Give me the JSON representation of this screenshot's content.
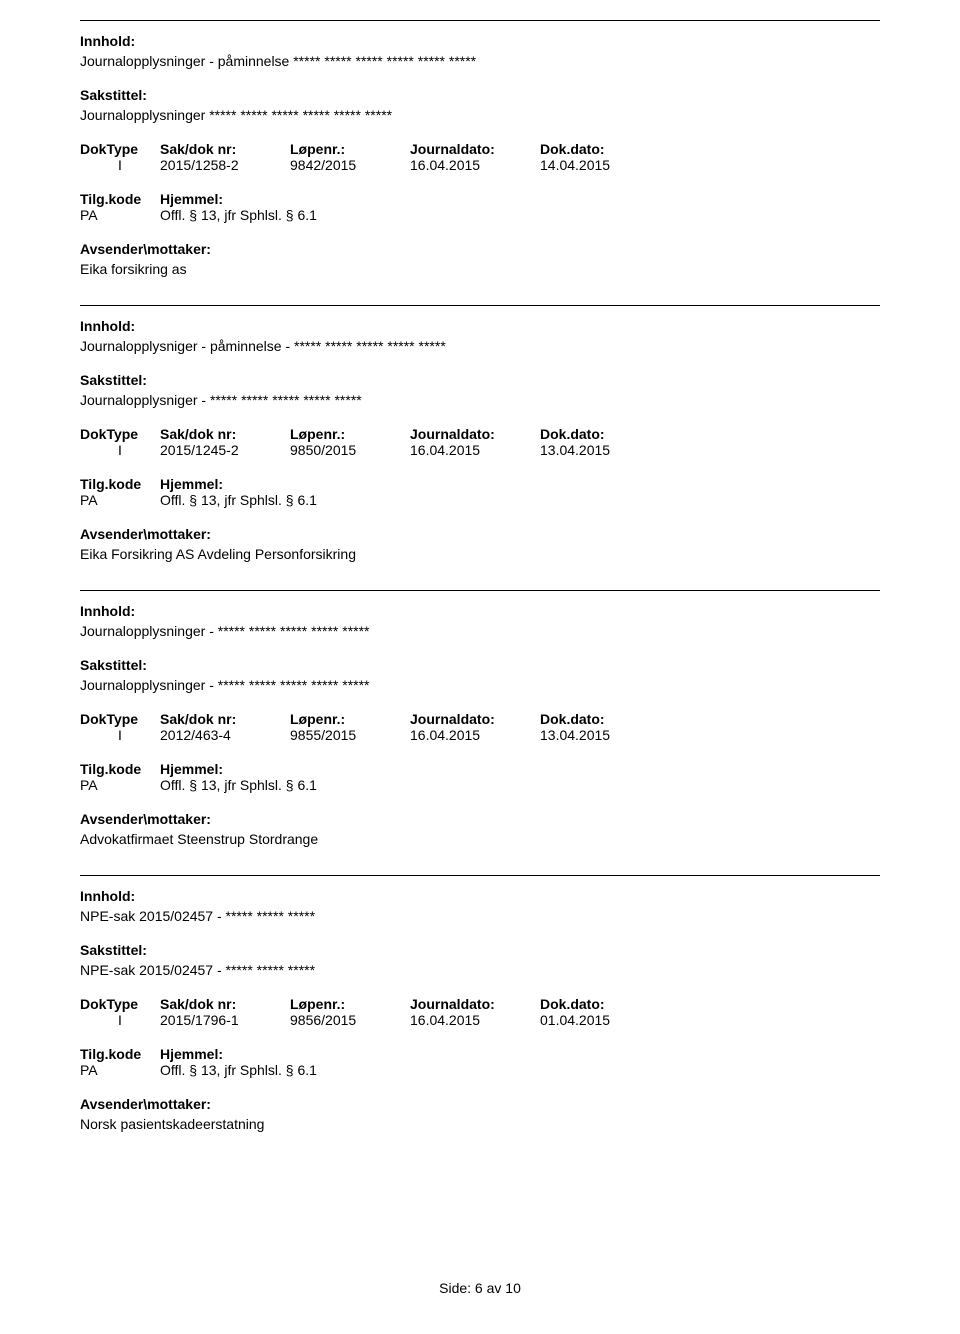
{
  "labels": {
    "innhold": "Innhold:",
    "sakstittel": "Sakstittel:",
    "doktype": "DokType",
    "sakdok": "Sak/dok nr:",
    "lopenr": "Løpenr.:",
    "journaldato": "Journaldato:",
    "dokdato": "Dok.dato:",
    "tilgkode": "Tilg.kode",
    "hjemmel": "Hjemmel:",
    "avsender": "Avsender\\mottaker:"
  },
  "records": [
    {
      "innhold": "Journalopplysninger - påminnelse ***** ***** ***** ***** ***** *****",
      "sakstittel": "Journalopplysninger ***** ***** ***** ***** ***** *****",
      "doktype": "I",
      "sakdok": "2015/1258-2",
      "lopenr": "9842/2015",
      "journaldato": "16.04.2015",
      "dokdato": "14.04.2015",
      "tilgkode": "PA",
      "hjemmel": "Offl. § 13, jfr Sphlsl. § 6.1",
      "avsender": "Eika forsikring as"
    },
    {
      "innhold": "Journalopplysniger - påminnelse - ***** ***** ***** ***** *****",
      "sakstittel": "Journalopplysniger - ***** ***** ***** ***** *****",
      "doktype": "I",
      "sakdok": "2015/1245-2",
      "lopenr": "9850/2015",
      "journaldato": "16.04.2015",
      "dokdato": "13.04.2015",
      "tilgkode": "PA",
      "hjemmel": "Offl. § 13, jfr Sphlsl. § 6.1",
      "avsender": "Eika Forsikring AS Avdeling Personforsikring"
    },
    {
      "innhold": "Journalopplysninger  - ***** ***** ***** ***** *****",
      "sakstittel": "Journalopplysninger  - ***** ***** ***** ***** *****",
      "doktype": "I",
      "sakdok": "2012/463-4",
      "lopenr": "9855/2015",
      "journaldato": "16.04.2015",
      "dokdato": "13.04.2015",
      "tilgkode": "PA",
      "hjemmel": "Offl. § 13, jfr Sphlsl. § 6.1",
      "avsender": "Advokatfirmaet Steenstrup Stordrange"
    },
    {
      "innhold": "NPE-sak 2015/02457 - ***** ***** *****",
      "sakstittel": "NPE-sak 2015/02457 - ***** ***** *****",
      "doktype": "I",
      "sakdok": "2015/1796-1",
      "lopenr": "9856/2015",
      "journaldato": "16.04.2015",
      "dokdato": "01.04.2015",
      "tilgkode": "PA",
      "hjemmel": "Offl. § 13, jfr Sphlsl. § 6.1",
      "avsender": "Norsk pasientskadeerstatning"
    }
  ],
  "footer": "Side: 6 av 10"
}
